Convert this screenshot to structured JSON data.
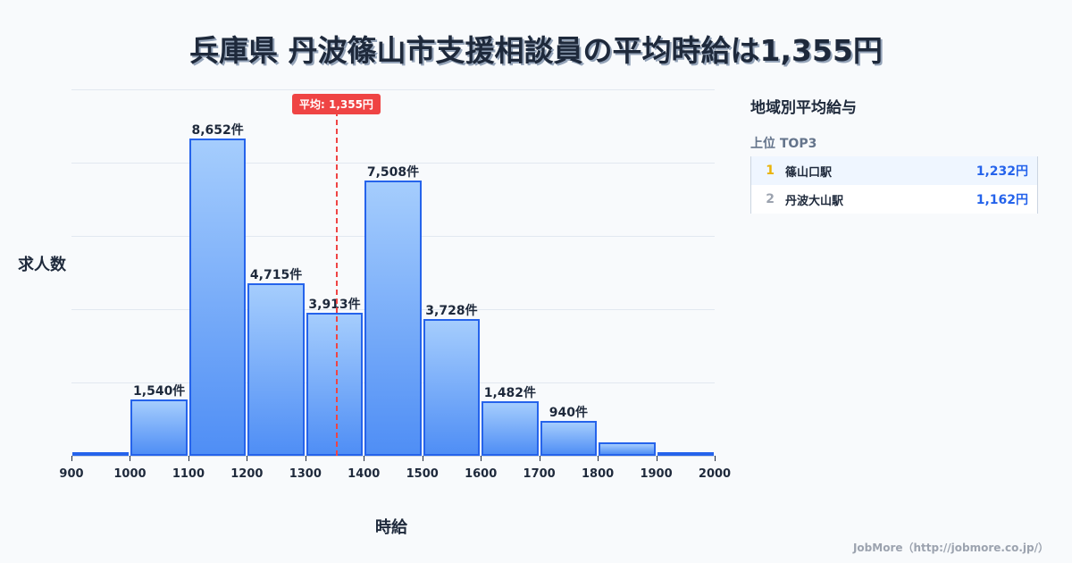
{
  "title": "兵庫県 丹波篠山市支援相談員の平均時給は1,355円",
  "average_badge": "平均: 1,355円",
  "colors": {
    "bar_fill_top": "#a5cdfd",
    "bar_fill_bottom": "#4f8ef5",
    "bar_border": "#2563eb",
    "average_line": "#ef4444",
    "rank1": "#eab308",
    "rank2": "#9ca3af",
    "value": "#2563eb"
  },
  "sidebar": {
    "title": "地域別平均給与",
    "subtitle": "上位 TOP3",
    "items": [
      {
        "rank": "1",
        "name": "篠山口駅",
        "value": "1,232円"
      },
      {
        "rank": "2",
        "name": "丹波大山駅",
        "value": "1,162円"
      }
    ]
  },
  "footer": "JobMore（http://jobmore.co.jp/）",
  "chart_data": {
    "type": "bar",
    "title": "兵庫県 丹波篠山市支援相談員の平均時給は1,355円",
    "xlabel": "時給",
    "ylabel": "求人数",
    "categories": [
      "900-1000",
      "1000-1100",
      "1100-1200",
      "1200-1300",
      "1300-1400",
      "1400-1500",
      "1500-1600",
      "1600-1700",
      "1700-1800",
      "1800-1900",
      "1900-2000"
    ],
    "values": [
      50,
      1540,
      8652,
      4715,
      3913,
      7508,
      3728,
      1482,
      940,
      370,
      100
    ],
    "labels": [
      "",
      "1,540件",
      "8,652件",
      "4,715件",
      "3,913件",
      "7,508件",
      "3,728件",
      "1,482件",
      "940件",
      "",
      ""
    ],
    "x_ticks": [
      "900",
      "1000",
      "1100",
      "1200",
      "1300",
      "1400",
      "1500",
      "1600",
      "1700",
      "1800",
      "1900",
      "2000"
    ],
    "xlim": [
      900,
      2000
    ],
    "ylim": [
      0,
      10000
    ],
    "grid": true,
    "average": 1355,
    "average_label": "平均: 1,355円"
  }
}
